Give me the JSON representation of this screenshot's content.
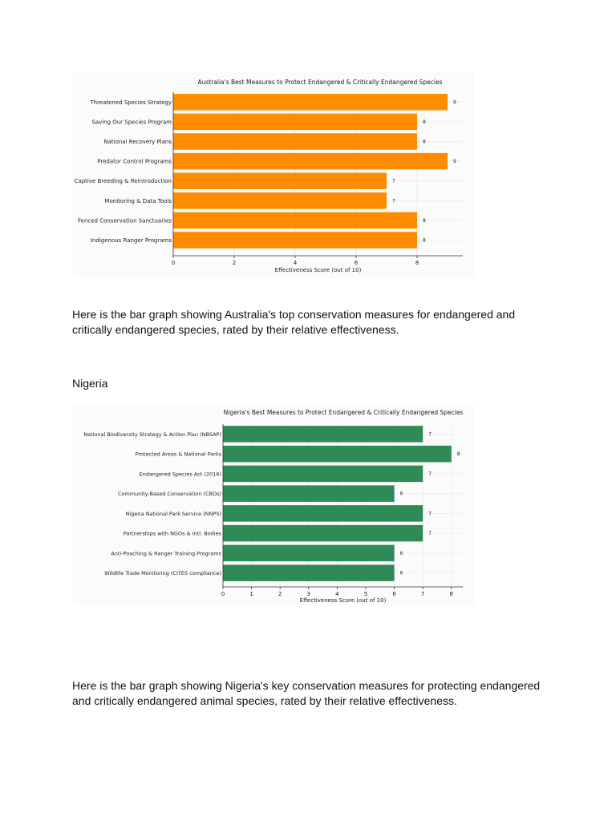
{
  "paragraphs": {
    "australia": "Here is the bar graph showing Australia's top conservation measures for endangered and critically endangered species, rated by their relative effectiveness.",
    "nigeria_heading": "Nigeria",
    "nigeria": "Here is the bar graph showing Nigeria's key conservation measures for protecting endangered and critically endangered animal species, rated by their relative effectiveness."
  },
  "chart_data": [
    {
      "id": "australia",
      "type": "bar",
      "orientation": "horizontal",
      "title": "Australia's Best Measures to Protect Endangered & Critically Endangered Species",
      "xlabel": "Effectiveness Score (out of 10)",
      "ylabel": "",
      "categories": [
        "Threatened Species Strategy",
        "Saving Our Species Program",
        "National Recovery Plans",
        "Predator Control Programs",
        "Captive Breeding & Reintroduction",
        "Monitoring & Data Tools",
        "Fenced Conservation Sanctuaries",
        "Indigenous Ranger Programs"
      ],
      "values": [
        9,
        8,
        8,
        9,
        7,
        7,
        8,
        8
      ],
      "xlim": [
        0,
        9.5
      ],
      "xticks": [
        0,
        2,
        4,
        6,
        8
      ],
      "grid": true,
      "bar_color": "#ff8c00",
      "data_labels": true
    },
    {
      "id": "nigeria",
      "type": "bar",
      "orientation": "horizontal",
      "title": "Nigeria's Best Measures to Protect Endangered & Critically Endangered Species",
      "xlabel": "Effectiveness Score (out of 10)",
      "ylabel": "",
      "categories": [
        "National Biodiversity Strategy & Action Plan (NBSAP)",
        "Protected Areas & National Parks",
        "Endangered Species Act (2016)",
        "Community-Based Conservation (CBOs)",
        "Nigeria National Park Service (NNPS)",
        "Partnerships with NGOs & Intl. Bodies",
        "Anti-Poaching & Ranger Training Programs",
        "Wildlife Trade Monitoring (CITES compliance)"
      ],
      "values": [
        7,
        8,
        7,
        6,
        7,
        7,
        6,
        6
      ],
      "xlim": [
        0,
        8.4
      ],
      "xticks": [
        0,
        1,
        2,
        3,
        4,
        5,
        6,
        7,
        8
      ],
      "grid": true,
      "bar_color": "#2e8b57",
      "data_labels": true
    }
  ]
}
